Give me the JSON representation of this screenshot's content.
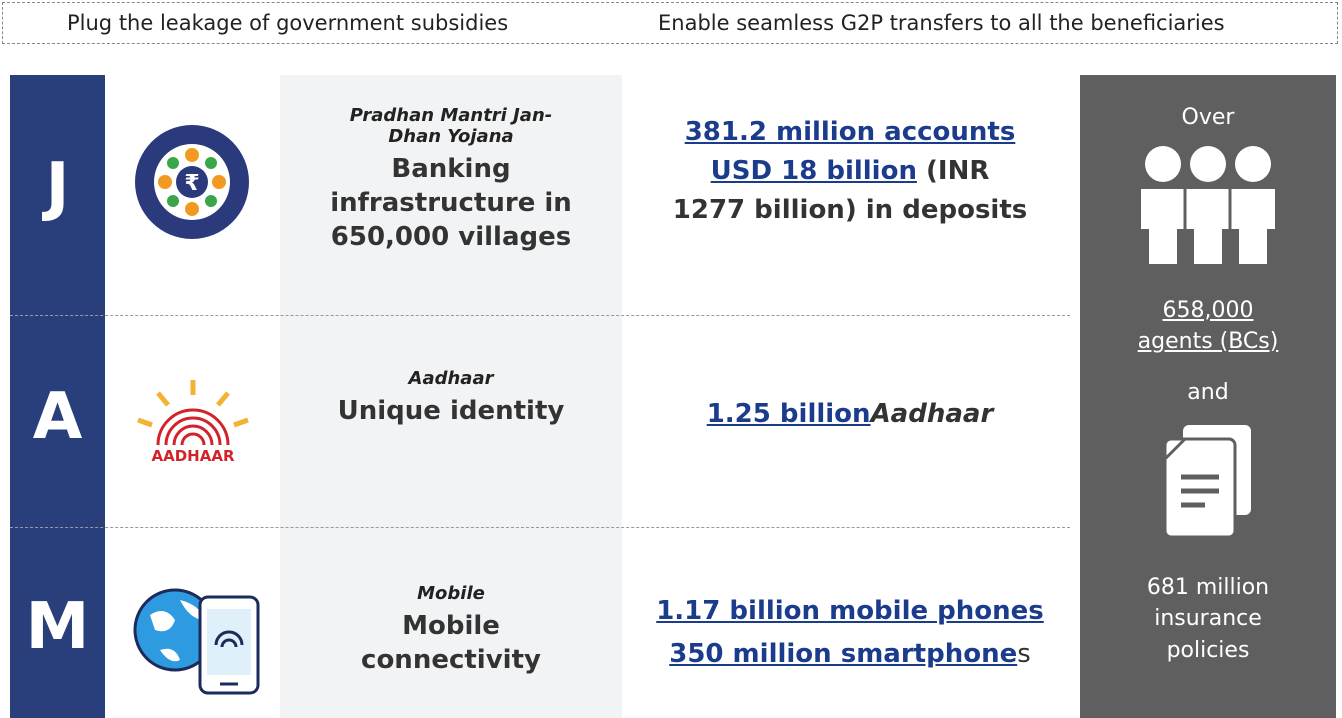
{
  "header": {
    "left": "Plug the leakage of government subsidies",
    "right": "Enable seamless G2P transfers to all the beneficiaries"
  },
  "rows": [
    {
      "letter": "J",
      "subtitle": "Pradhan Mantri Jan-Dhan Yojana",
      "title": "Banking infrastructure in 650,000 villages",
      "value": {
        "link1": "381.2 million accounts",
        "link2": "USD 18 billion",
        "rest": " (INR 1277 billion) in deposits"
      }
    },
    {
      "letter": "A",
      "logo_text": "AADHAAR",
      "subtitle": "Aadhaar",
      "title": "Unique identity",
      "value": {
        "link1": "1.25 billion",
        "italic": "Aadhaar"
      }
    },
    {
      "letter": "M",
      "subtitle": "Mobile",
      "title": "Mobile connectivity",
      "value": {
        "link1": "1.17 billion mobile phones",
        "link2": "350 million smartphone",
        "rest": "s"
      }
    }
  ],
  "sidebar": {
    "over": "Over",
    "agents": "658,000 agents (BCs)",
    "and": "and",
    "policies": "681 million insurance policies"
  }
}
